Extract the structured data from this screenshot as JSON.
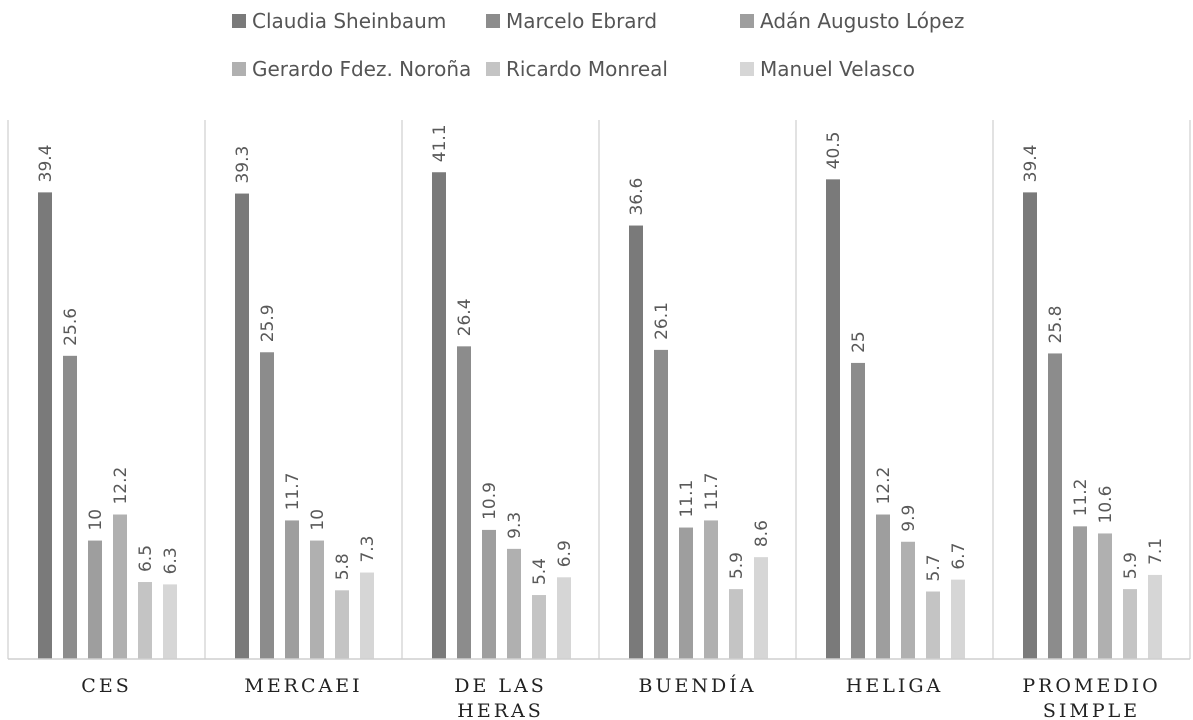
{
  "chart_data": {
    "type": "bar",
    "orientation": "vertical",
    "grid": false,
    "legend_position": "top",
    "categories": [
      [
        "CES"
      ],
      [
        "MERCAEI"
      ],
      [
        "DE LAS",
        "HERAS"
      ],
      [
        "BUENDÍA"
      ],
      [
        "HELIGA"
      ],
      [
        "PROMEDIO",
        "SIMPLE"
      ]
    ],
    "series": [
      {
        "name": "Claudia Sheinbaum",
        "color": "#7a7a7a",
        "values": [
          39.4,
          39.3,
          41.1,
          36.6,
          40.5,
          39.4
        ]
      },
      {
        "name": "Marcelo Ebrard",
        "color": "#8c8c8c",
        "values": [
          25.6,
          25.9,
          26.4,
          26.1,
          25,
          25.8
        ]
      },
      {
        "name": "Adán Augusto López",
        "color": "#9e9e9e",
        "values": [
          10,
          11.7,
          10.9,
          11.1,
          12.2,
          11.2
        ]
      },
      {
        "name": "Gerardo Fdez. Noroña",
        "color": "#b0b0b0",
        "values": [
          12.2,
          10,
          9.3,
          11.7,
          9.9,
          10.6
        ]
      },
      {
        "name": "Ricardo Monreal",
        "color": "#c4c4c4",
        "values": [
          6.5,
          5.8,
          5.4,
          5.9,
          5.7,
          5.9
        ]
      },
      {
        "name": "Manuel Velasco",
        "color": "#d6d6d6",
        "values": [
          6.3,
          7.3,
          6.9,
          8.6,
          6.7,
          7.1
        ]
      }
    ],
    "value_labels": [
      [
        "39.4",
        "25.6",
        "10",
        "12.2",
        "6.5",
        "6.3"
      ],
      [
        "39.3",
        "25.9",
        "11.7",
        "10",
        "5.8",
        "7.3"
      ],
      [
        "41.1",
        "26.4",
        "10.9",
        "9.3",
        "5.4",
        "6.9"
      ],
      [
        "36.6",
        "26.1",
        "11.1",
        "11.7",
        "5.9",
        "8.6"
      ],
      [
        "40.5",
        "25",
        "12.2",
        "9.9",
        "5.7",
        "6.7"
      ],
      [
        "39.4",
        "25.8",
        "11.2",
        "10.6",
        "5.9",
        "7.1"
      ]
    ],
    "ylim": [
      0,
      45
    ]
  }
}
